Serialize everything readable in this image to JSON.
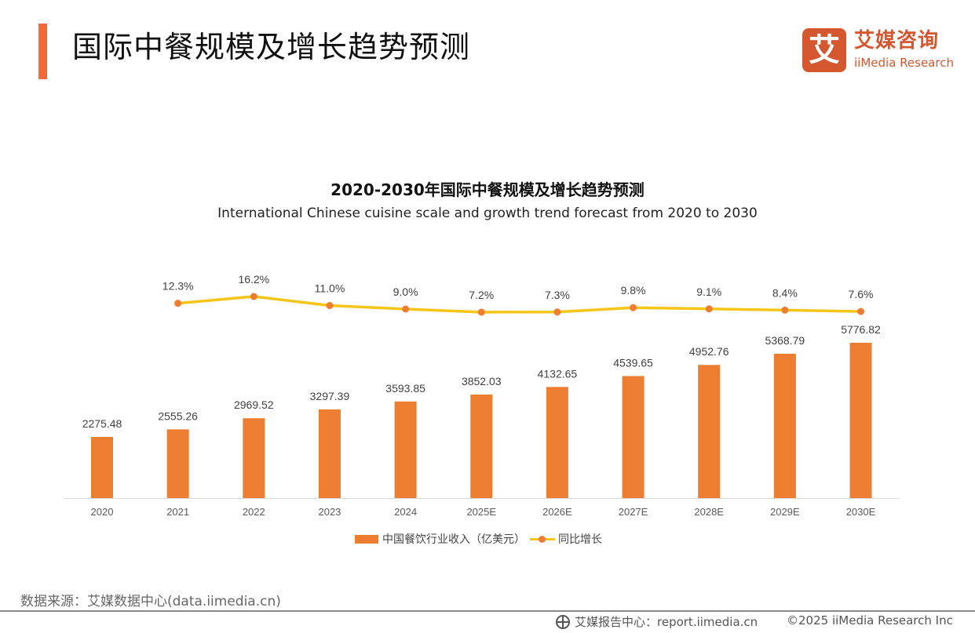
{
  "header": {
    "title": "国际中餐规模及增长趋势预测",
    "logo": {
      "mark": "艾",
      "name_cn": "艾媒咨询",
      "name_en": "iiMedia Research"
    }
  },
  "chart_data": {
    "type": "bar",
    "title": "2020-2030年国际中餐规模及增长趋势预测",
    "subtitle": "International Chinese cuisine scale and growth trend forecast from 2020 to 2030",
    "categories": [
      "2020",
      "2021",
      "2022",
      "2023",
      "2024",
      "2025E",
      "2026E",
      "2027E",
      "2028E",
      "2029E",
      "2030E"
    ],
    "series": [
      {
        "name": "中国餐饮行业收入（亿美元）",
        "type": "bar",
        "color": "#ed7d31",
        "values": [
          2275.48,
          2555.26,
          2969.52,
          3297.39,
          3593.85,
          3852.03,
          4132.65,
          4539.65,
          4952.76,
          5368.79,
          5776.82
        ],
        "labels": [
          "2275.48",
          "2555.26",
          "2969.52",
          "3297.39",
          "3593.85",
          "3852.03",
          "4132.65",
          "4539.65",
          "4952.76",
          "5368.79",
          "5776.82"
        ]
      },
      {
        "name": "同比增长",
        "type": "line",
        "color": "#f5c518",
        "marker_color": "#ed7d31",
        "values": [
          null,
          12.3,
          16.2,
          11.0,
          9.0,
          7.2,
          7.3,
          9.8,
          9.1,
          8.4,
          7.6
        ],
        "labels": [
          "",
          "12.3%",
          "16.2%",
          "11.0%",
          "9.0%",
          "7.2%",
          "7.3%",
          "9.8%",
          "9.1%",
          "8.4%",
          "7.6%"
        ]
      }
    ],
    "xlabel": "",
    "ylabel": "",
    "ylim": [
      0,
      5776.82
    ],
    "grid": false,
    "legend": "bottom"
  },
  "footer": {
    "source": "数据来源：艾媒数据中心(data.iimedia.cn)",
    "report": "艾媒报告中心：report.iimedia.cn",
    "copyright": "©2025  iiMedia Research  Inc"
  }
}
